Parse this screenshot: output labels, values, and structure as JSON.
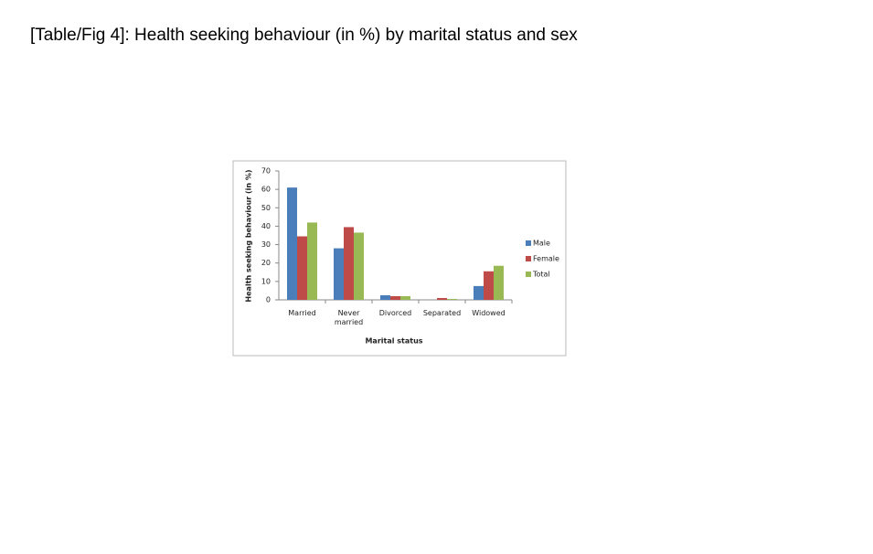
{
  "chart_data": {
    "type": "bar",
    "title": "[Table/Fig 4]: Health seeking behaviour (in %) by marital status and sex",
    "x_label": "Marital status",
    "y_label": "Health seeking behaviour (in %)",
    "categories": [
      "Married",
      "Never married",
      "Divorced",
      "Separated",
      "Widowed"
    ],
    "series": [
      {
        "name": "Male",
        "color": "#4a7ebb",
        "values": [
          61,
          28,
          2.5,
          0,
          7.5
        ]
      },
      {
        "name": "Female",
        "color": "#be4b48",
        "values": [
          34.5,
          39.5,
          2,
          1,
          15.5
        ]
      },
      {
        "name": "Total",
        "color": "#98b954",
        "values": [
          42,
          36.5,
          2,
          0.5,
          18.5
        ]
      }
    ],
    "ylim": [
      0,
      70
    ],
    "yticks": [
      0,
      10,
      20,
      30,
      40,
      50,
      60,
      70
    ],
    "grid": false,
    "legend": "right"
  }
}
